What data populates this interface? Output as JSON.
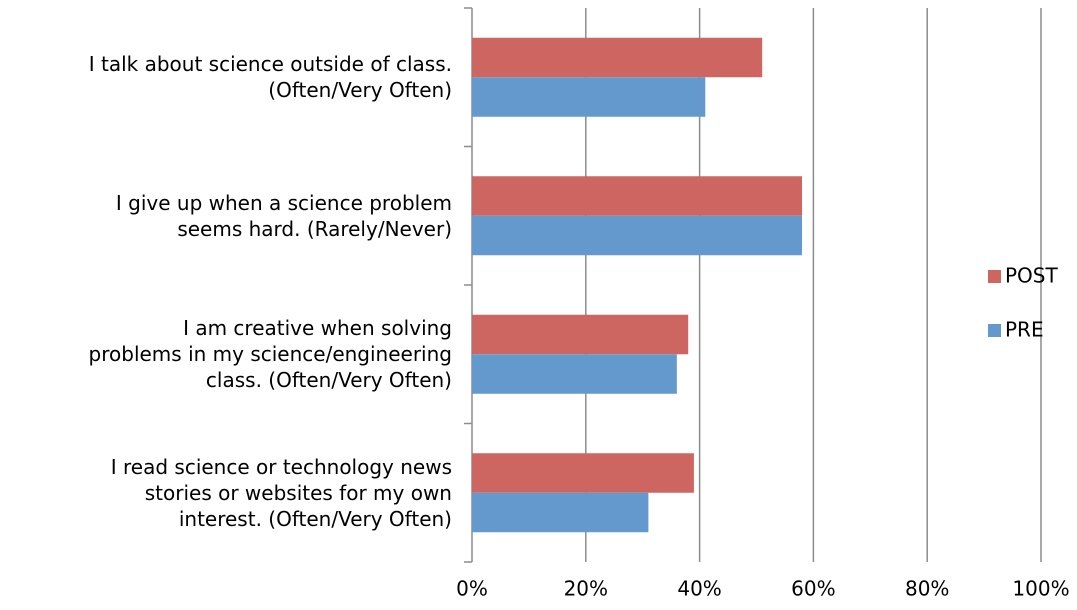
{
  "chart_data": {
    "type": "hbar",
    "categories": [
      "I talk about science outside of class.\n(Often/Very Often)",
      "I give up when a science problem\nseems hard. (Rarely/Never)",
      "I am creative when solving\nproblems in my science/engineering\nclass. (Often/Very Often)",
      "I read science or technology news\nstories or websites for my own\ninterest. (Often/Very Often)"
    ],
    "series": [
      {
        "name": "POST",
        "color": "#cd6660",
        "values": [
          51,
          58,
          38,
          39
        ]
      },
      {
        "name": "PRE",
        "color": "#6399cc",
        "values": [
          41,
          58,
          36,
          31
        ]
      }
    ],
    "xlim": [
      0,
      100
    ],
    "xticks": [
      {
        "value": 0,
        "label": "0%"
      },
      {
        "value": 20,
        "label": "20%"
      },
      {
        "value": 40,
        "label": "40%"
      },
      {
        "value": 60,
        "label": "60%"
      },
      {
        "value": 80,
        "label": "80%"
      },
      {
        "value": 100,
        "label": "100%"
      }
    ],
    "grid": true,
    "legend": "right"
  }
}
